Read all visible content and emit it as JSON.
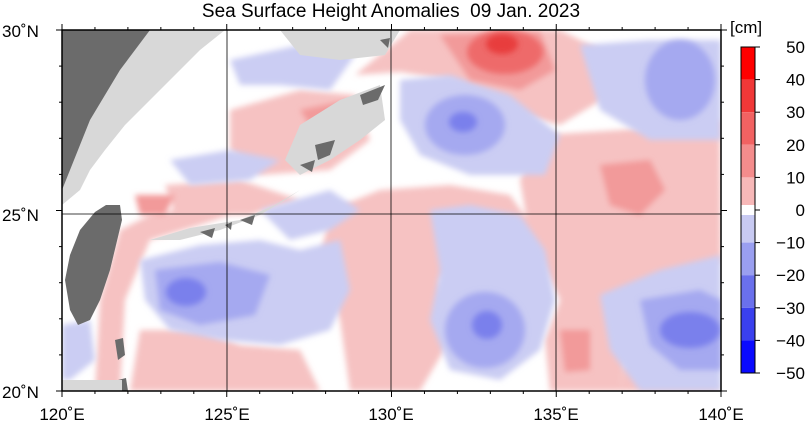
{
  "title": "Sea Surface Height Anomalies  09 Jan. 2023",
  "colorbar": {
    "unit": "[cm]",
    "ticks": [
      "50",
      "40",
      "30",
      "20",
      "10",
      "0",
      "−10",
      "−20",
      "−30",
      "−40",
      "−50"
    ],
    "colors": [
      "#ff0000",
      "#f23a3a",
      "#f26363",
      "#f59090",
      "#f7baba",
      "#ffffff",
      "#c8caf2",
      "#9a9ff0",
      "#6a70ec",
      "#3a40ee",
      "#0a0aff"
    ]
  },
  "lat_labels": [
    "30˚N",
    "25˚N",
    "20˚N"
  ],
  "lon_labels": [
    "120˚E",
    "125˚E",
    "130˚E",
    "135˚E",
    "140˚E"
  ],
  "colors": {
    "land_dark": "#6b6b6b",
    "land_light": "#d8d8d8",
    "pos_weak": "#f6c2c2",
    "pos_mid": "#f29a9a",
    "pos_strong": "#ee6a6a",
    "pos_core": "#e83c3c",
    "neg_weak": "#cbcdf3",
    "neg_mid": "#a5a9f0",
    "neg_strong": "#7a80ec"
  }
}
